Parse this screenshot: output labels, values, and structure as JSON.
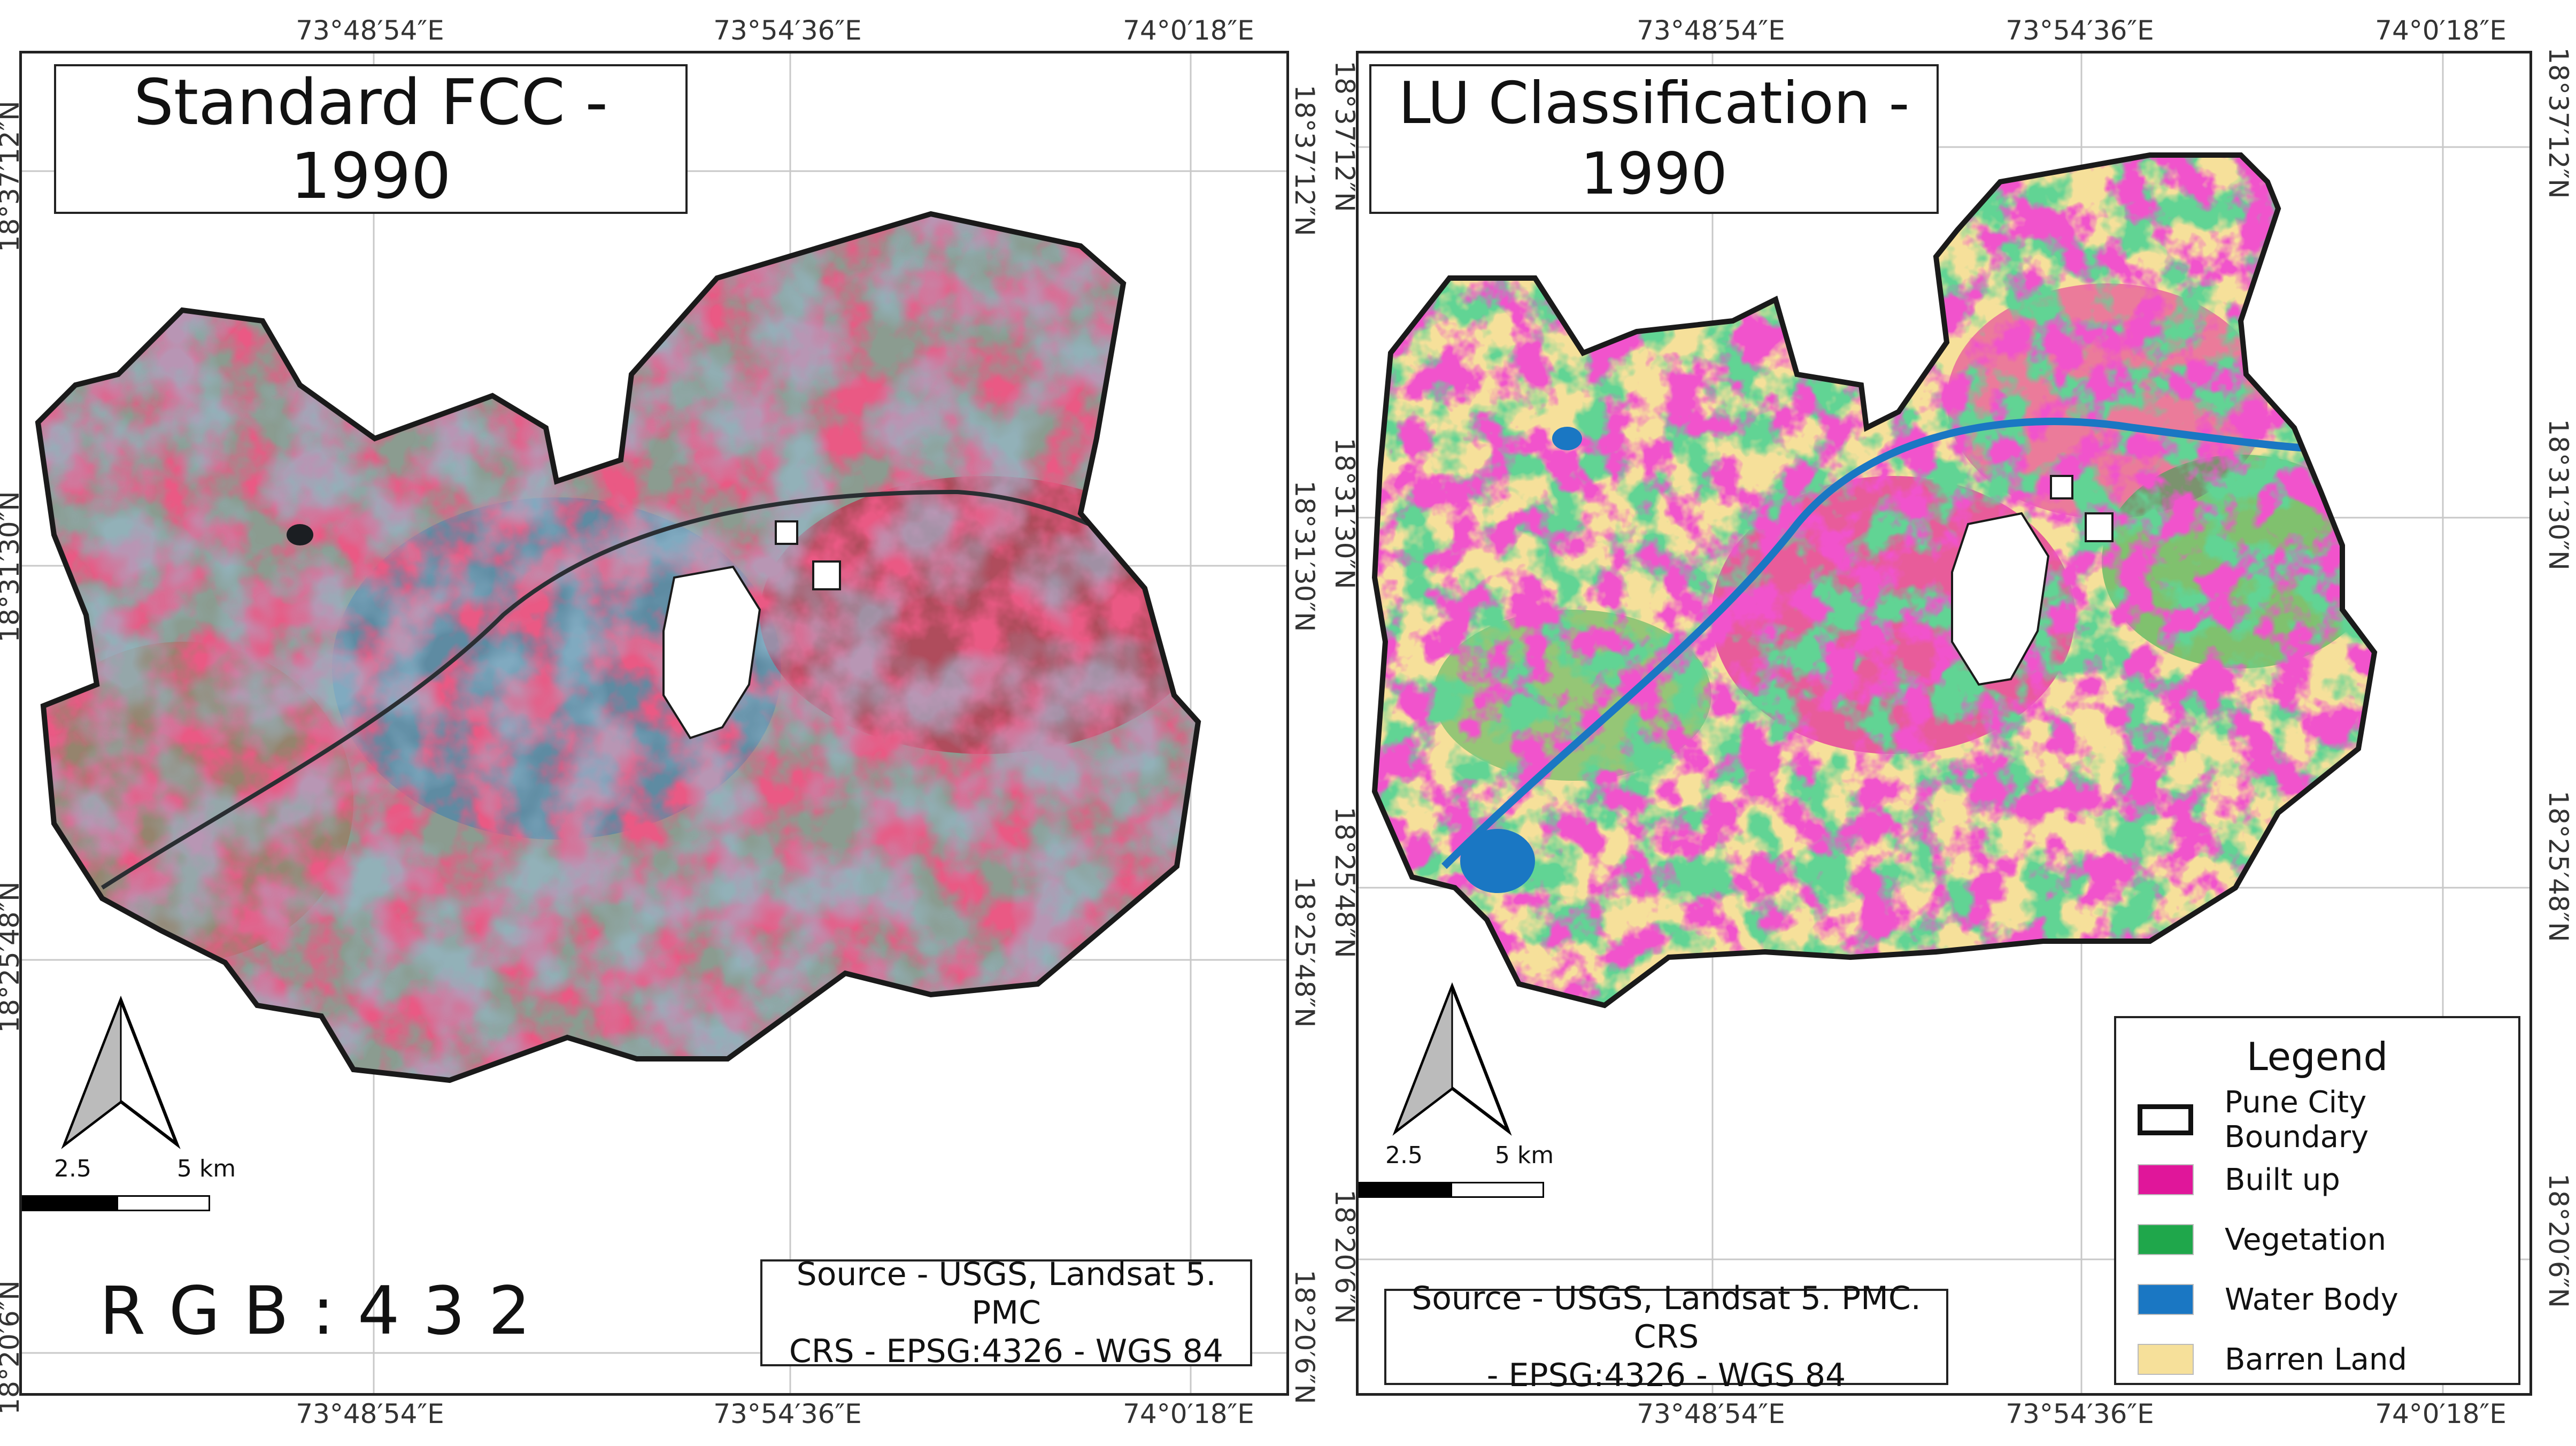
{
  "coords": {
    "top_lon": [
      "73°48′54″E",
      "73°54′36″E",
      "74°0′18″E"
    ],
    "bottom_lon": [
      "73°48′54″E",
      "73°54′36″E",
      "74°0′18″E"
    ],
    "lat": [
      "18°37′12″N",
      "18°31′30″N",
      "18°25′48″N",
      "18°20′6″N"
    ]
  },
  "left_panel": {
    "title": "Standard FCC - 1990",
    "rgb_label": "R G B : 4 3 2",
    "source": [
      "Source - USGS, Landsat 5. PMC",
      "CRS - EPSG:4326 - WGS 84"
    ],
    "scale": {
      "labels": [
        "2.5",
        "5 km"
      ]
    }
  },
  "right_panel": {
    "title": [
      "LU Classification -",
      "1990"
    ],
    "source": [
      "Source - USGS, Landsat 5. PMC. CRS",
      "- EPSG:4326 - WGS 84"
    ],
    "scale": {
      "labels": [
        "2.5",
        "5 km"
      ]
    },
    "legend": {
      "title": "Legend",
      "items": [
        {
          "label": "Pune City Boundary",
          "color": "#ffffff",
          "outline": "#111111"
        },
        {
          "label": "Built up",
          "color": "#e0169a"
        },
        {
          "label": "Vegetation",
          "color": "#1fa74b"
        },
        {
          "label": "Water Body",
          "color": "#1a77c3"
        },
        {
          "label": "Barren Land",
          "color": "#f6e09a"
        }
      ]
    }
  },
  "colors": {
    "fcc_base": "#8a9a8e",
    "fcc_red": "#d21a3a",
    "fcc_blue": "#4f86a8",
    "fcc_brown": "#9a7a5e",
    "boundary": "#1a1a1a"
  }
}
